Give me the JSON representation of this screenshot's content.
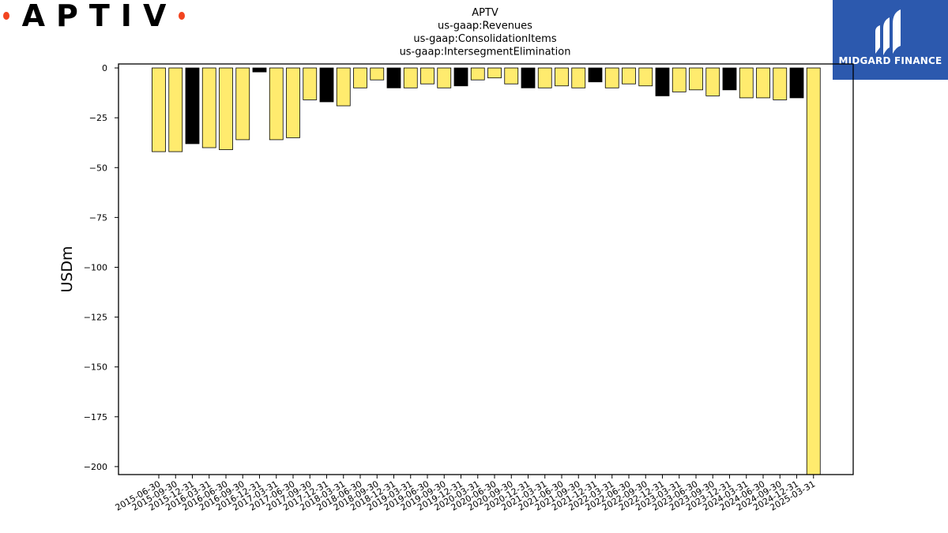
{
  "logos": {
    "left_text": "APTIV",
    "right_text": "MIDGARD FINANCE",
    "accent_dot_color": "#f2441f",
    "right_bg_color": "#2c59ae"
  },
  "chart_data": {
    "type": "bar",
    "title_lines": [
      "APTV",
      "us-gaap:Revenues",
      "us-gaap:ConsolidationItems",
      "us-gaap:IntersegmentElimination"
    ],
    "xlabel": "",
    "ylabel": "USDm",
    "ylim": [
      -204,
      2
    ],
    "yticks": [
      0,
      -25,
      -50,
      -75,
      -100,
      -125,
      -150,
      -175,
      -200
    ],
    "ytick_labels": [
      "0",
      "−25",
      "−50",
      "−75",
      "−100",
      "−125",
      "−150",
      "−175",
      "−200"
    ],
    "grid": false,
    "colors": {
      "quarter": "#ffeb6e",
      "year_end": "#000000",
      "edge": "#000000"
    },
    "categories": [
      "2015-06-30",
      "2015-09-30",
      "2015-12-31",
      "2016-03-31",
      "2016-06-30",
      "2016-09-30",
      "2016-12-31",
      "2017-03-31",
      "2017-06-30",
      "2017-09-30",
      "2017-12-31",
      "2018-03-31",
      "2018-06-30",
      "2018-09-30",
      "2018-12-31",
      "2019-03-31",
      "2019-06-30",
      "2019-09-30",
      "2019-12-31",
      "2020-03-31",
      "2020-06-30",
      "2020-09-30",
      "2020-12-31",
      "2021-03-31",
      "2021-06-30",
      "2021-09-30",
      "2021-12-31",
      "2022-03-31",
      "2022-06-30",
      "2022-09-30",
      "2022-12-31",
      "2023-03-31",
      "2023-06-30",
      "2023-09-30",
      "2023-12-31",
      "2024-03-31",
      "2024-06-30",
      "2024-09-30",
      "2024-12-31",
      "2025-03-31"
    ],
    "values": [
      -42,
      -42,
      -38,
      -40,
      -41,
      -36,
      -2,
      -36,
      -35,
      -16,
      -17,
      -19,
      -10,
      -6,
      -10,
      -10,
      -8,
      -10,
      -9,
      -6,
      -5,
      -8,
      -10,
      -10,
      -9,
      -10,
      -7,
      -10,
      -8,
      -9,
      -14,
      -12,
      -11,
      -14,
      -11,
      -15,
      -15,
      -16,
      -15,
      -204
    ]
  }
}
